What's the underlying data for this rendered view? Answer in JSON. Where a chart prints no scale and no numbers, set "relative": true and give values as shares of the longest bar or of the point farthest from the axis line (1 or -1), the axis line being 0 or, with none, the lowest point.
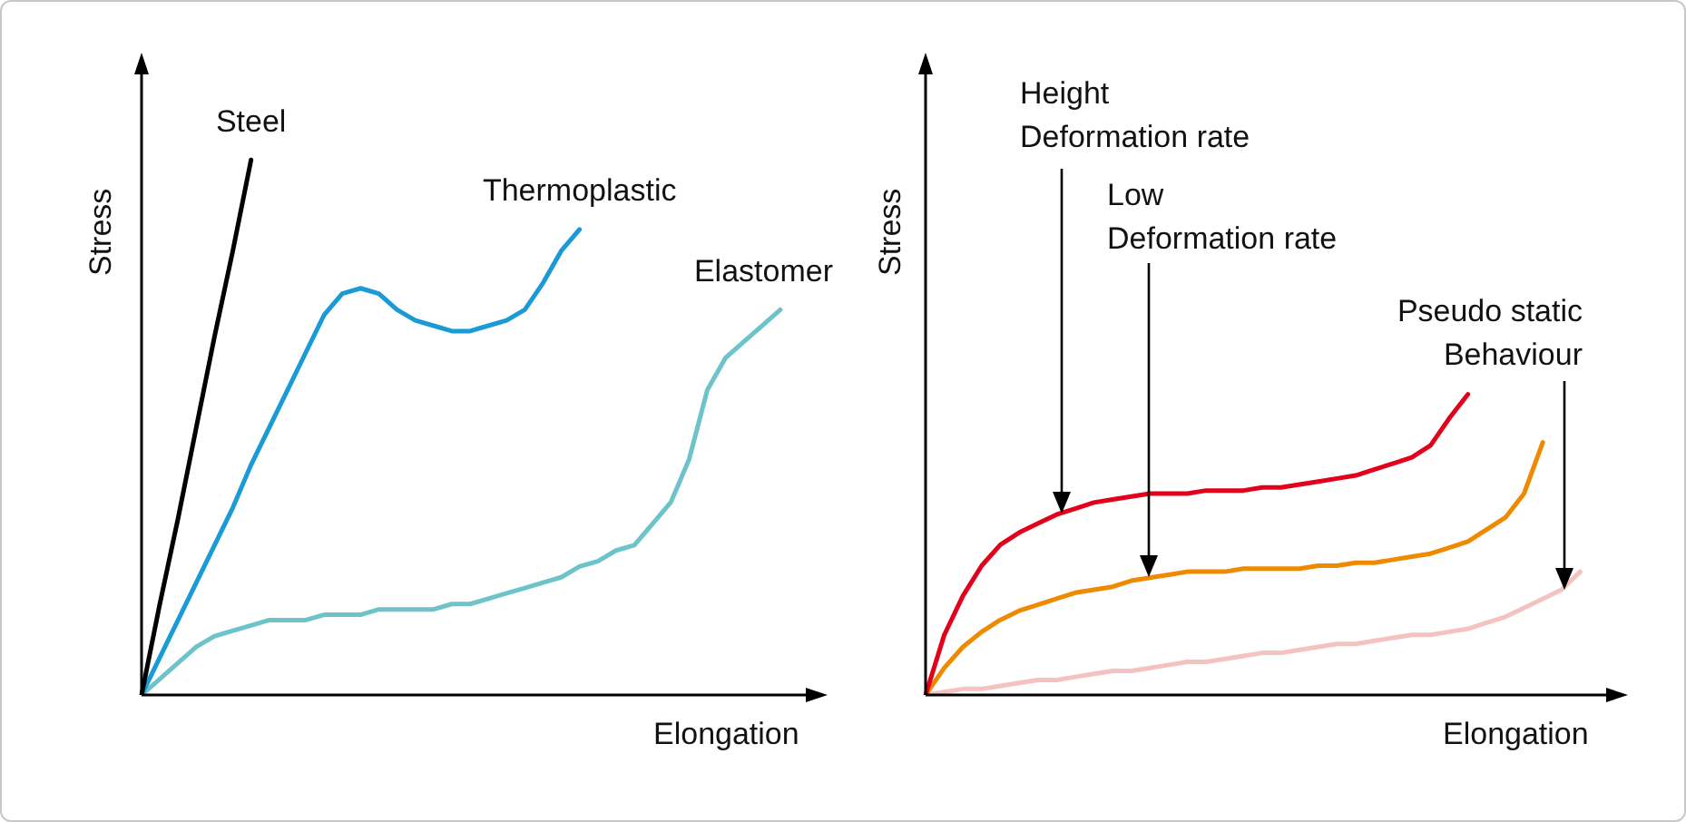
{
  "chart_data": [
    {
      "type": "line",
      "relative": true,
      "marker": "none",
      "xlabel": "Elongation",
      "ylabel": "Stress",
      "categories": [
        null,
        null,
        null,
        null,
        null,
        null,
        null,
        null,
        null,
        null,
        null,
        null,
        null,
        null,
        null,
        null,
        null,
        null,
        null,
        null,
        null,
        null,
        null,
        null,
        null,
        null,
        null,
        null,
        null,
        null,
        null,
        null,
        null,
        null,
        null,
        null,
        null
      ],
      "series": [
        {
          "name": "Steel",
          "color": "#000000",
          "values": [
            0,
            0.17,
            0.33,
            0.5,
            0.67,
            0.83,
            1,
            null,
            null,
            null,
            null,
            null,
            null,
            null,
            null,
            null,
            null,
            null,
            null,
            null,
            null,
            null,
            null,
            null,
            null,
            null,
            null,
            null,
            null,
            null,
            null,
            null,
            null,
            null,
            null,
            null,
            null
          ]
        },
        {
          "name": "Thermoplastic",
          "color": "#1a9ad6",
          "values": [
            0,
            0.07,
            0.14,
            0.21,
            0.28,
            0.35,
            0.43,
            0.5,
            0.57,
            0.64,
            0.71,
            0.75,
            0.76,
            0.75,
            0.72,
            0.7,
            0.69,
            0.68,
            0.68,
            0.69,
            0.7,
            0.72,
            0.77,
            0.83,
            0.87,
            null,
            null,
            null,
            null,
            null,
            null,
            null,
            null,
            null,
            null,
            null,
            null
          ]
        },
        {
          "name": "Elastomer",
          "color": "#6cc3c9",
          "values": [
            0,
            0.03,
            0.06,
            0.09,
            0.11,
            0.12,
            0.13,
            0.14,
            0.14,
            0.14,
            0.15,
            0.15,
            0.15,
            0.16,
            0.16,
            0.16,
            0.16,
            0.17,
            0.17,
            0.18,
            0.19,
            0.2,
            0.21,
            0.22,
            0.24,
            0.25,
            0.27,
            0.28,
            0.32,
            0.36,
            0.44,
            0.57,
            0.63,
            0.66,
            0.69,
            0.72,
            null
          ]
        }
      ]
    },
    {
      "type": "line",
      "relative": true,
      "marker": "none",
      "xlabel": "Elongation",
      "ylabel": "Stress",
      "annotations": [
        "Height\nDeformation rate",
        "Low\nDeformation rate",
        "Pseudo static\nBehaviour"
      ],
      "categories": [
        null,
        null,
        null,
        null,
        null,
        null,
        null,
        null,
        null,
        null,
        null,
        null,
        null,
        null,
        null,
        null,
        null,
        null,
        null,
        null,
        null,
        null,
        null,
        null,
        null,
        null,
        null,
        null,
        null,
        null,
        null,
        null,
        null,
        null,
        null,
        null,
        null
      ],
      "series": [
        {
          "color": "#e2001a",
          "values": [
            0,
            0.2,
            0.33,
            0.43,
            0.5,
            0.54,
            0.57,
            0.6,
            0.62,
            0.64,
            0.65,
            0.66,
            0.67,
            0.67,
            0.67,
            0.68,
            0.68,
            0.68,
            0.69,
            0.69,
            0.7,
            0.71,
            0.72,
            0.73,
            0.75,
            0.77,
            0.79,
            0.83,
            0.92,
            1,
            null,
            null,
            null,
            null,
            null,
            null,
            null
          ]
        },
        {
          "color": "#ef8a00",
          "values": [
            0,
            0.09,
            0.16,
            0.21,
            0.25,
            0.28,
            0.3,
            0.32,
            0.34,
            0.35,
            0.36,
            0.38,
            0.39,
            0.4,
            0.41,
            0.41,
            0.41,
            0.42,
            0.42,
            0.42,
            0.42,
            0.43,
            0.43,
            0.44,
            0.44,
            0.45,
            0.46,
            0.47,
            0.49,
            0.51,
            0.55,
            0.59,
            0.67,
            0.84,
            null,
            null,
            null
          ]
        },
        {
          "color": "#f4c2c0",
          "values": [
            0,
            0.01,
            0.02,
            0.02,
            0.03,
            0.04,
            0.05,
            0.05,
            0.06,
            0.07,
            0.08,
            0.08,
            0.09,
            0.1,
            0.11,
            0.11,
            0.12,
            0.13,
            0.14,
            0.14,
            0.15,
            0.16,
            0.17,
            0.17,
            0.18,
            0.19,
            0.2,
            0.2,
            0.21,
            0.22,
            0.24,
            0.26,
            0.29,
            0.32,
            0.35,
            0.41,
            null
          ]
        }
      ]
    }
  ]
}
